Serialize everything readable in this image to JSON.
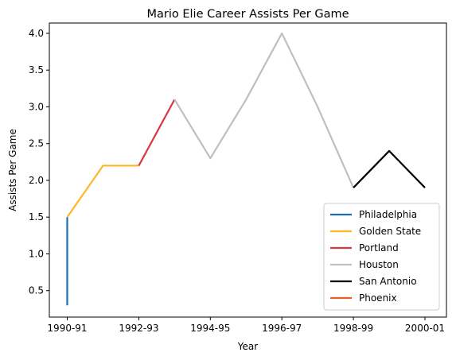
{
  "chart_data": {
    "type": "line",
    "title": "Mario Elie Career Assists Per Game",
    "xlabel": "Year",
    "ylabel": "Assists Per Game",
    "ylim": [
      0.14,
      4.14
    ],
    "yticks": [
      "0.5",
      "1.0",
      "1.5",
      "2.0",
      "2.5",
      "3.0",
      "3.5",
      "4.0"
    ],
    "xticks": [
      "1990-91",
      "1992-93",
      "1994-95",
      "1996-97",
      "1998-99",
      "2000-01"
    ],
    "grid": false,
    "legend_position": "lower-right",
    "series": [
      {
        "name": "Philadelphia",
        "color": "#1f6fb0",
        "x": [
          "1990-91",
          "1990-91"
        ],
        "y": [
          0.3,
          1.5
        ]
      },
      {
        "name": "Golden State",
        "color": "#fdb827",
        "x": [
          "1990-91",
          "1991-92",
          "1992-93"
        ],
        "y": [
          1.5,
          2.2,
          2.2
        ]
      },
      {
        "name": "Portland",
        "color": "#d8393e",
        "x": [
          "1992-93",
          "1993-94"
        ],
        "y": [
          2.2,
          3.1
        ]
      },
      {
        "name": "Houston",
        "color": "#bfbfbf",
        "x": [
          "1993-94",
          "1994-95",
          "1995-96",
          "1996-97",
          "1997-98",
          "1998-99"
        ],
        "y": [
          3.1,
          2.3,
          3.1,
          4.0,
          3.0,
          1.9
        ]
      },
      {
        "name": "San Antonio",
        "color": "#000000",
        "x": [
          "1998-99",
          "1999-00",
          "2000-01"
        ],
        "y": [
          1.9,
          2.4,
          1.9
        ]
      },
      {
        "name": "Phoenix",
        "color": "#e5602a",
        "x": [],
        "y": []
      }
    ]
  }
}
